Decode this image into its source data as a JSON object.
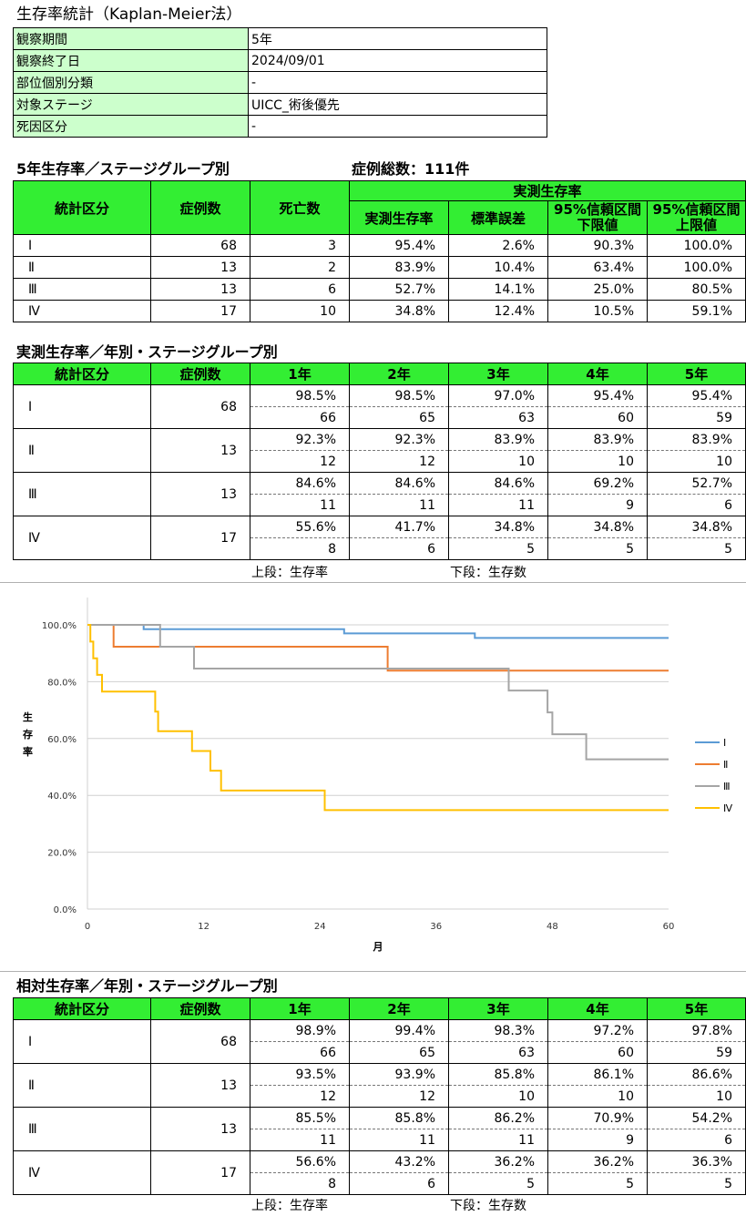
{
  "title": "生存率統計（Kaplan-Meier法）",
  "info": [
    {
      "label": "観察期間",
      "value": "5年"
    },
    {
      "label": "観察終了日",
      "value": "2024/09/01"
    },
    {
      "label": "部位個別分類",
      "value": "-"
    },
    {
      "label": "対象ステージ",
      "value": "UICC_術後優先"
    },
    {
      "label": "死因区分",
      "value": "-"
    }
  ],
  "five_year": {
    "heading": "5年生存率／ステージグループ別",
    "total": "症例総数：111件",
    "headers": {
      "cat": "統計区分",
      "cases": "症例数",
      "deaths": "死亡数",
      "group": "実測生存率",
      "rate": "実測生存率",
      "se": "標準誤差",
      "lower_1": "95%信頼区間",
      "lower_2": "下限値",
      "upper_1": "95%信頼区間",
      "upper_2": "上限値"
    },
    "rows": [
      {
        "cat": "Ⅰ",
        "cases": "68",
        "deaths": "3",
        "rate": "95.4%",
        "se": "2.6%",
        "lower": "90.3%",
        "upper": "100.0%"
      },
      {
        "cat": "Ⅱ",
        "cases": "13",
        "deaths": "2",
        "rate": "83.9%",
        "se": "10.4%",
        "lower": "63.4%",
        "upper": "100.0%"
      },
      {
        "cat": "Ⅲ",
        "cases": "13",
        "deaths": "6",
        "rate": "52.7%",
        "se": "14.1%",
        "lower": "25.0%",
        "upper": "80.5%"
      },
      {
        "cat": "Ⅳ",
        "cases": "17",
        "deaths": "10",
        "rate": "34.8%",
        "se": "12.4%",
        "lower": "10.5%",
        "upper": "59.1%"
      }
    ]
  },
  "observed": {
    "heading": "実測生存率／年別・ステージグループ別",
    "headers": [
      "統計区分",
      "症例数",
      "1年",
      "2年",
      "3年",
      "4年",
      "5年"
    ],
    "rows": [
      {
        "cat": "Ⅰ",
        "cases": "68",
        "rates": [
          "98.5%",
          "98.5%",
          "97.0%",
          "95.4%",
          "95.4%"
        ],
        "counts": [
          "66",
          "65",
          "63",
          "60",
          "59"
        ]
      },
      {
        "cat": "Ⅱ",
        "cases": "13",
        "rates": [
          "92.3%",
          "92.3%",
          "83.9%",
          "83.9%",
          "83.9%"
        ],
        "counts": [
          "12",
          "12",
          "10",
          "10",
          "10"
        ]
      },
      {
        "cat": "Ⅲ",
        "cases": "13",
        "rates": [
          "84.6%",
          "84.6%",
          "84.6%",
          "69.2%",
          "52.7%"
        ],
        "counts": [
          "11",
          "11",
          "11",
          "9",
          "6"
        ]
      },
      {
        "cat": "Ⅳ",
        "cases": "17",
        "rates": [
          "55.6%",
          "41.7%",
          "34.8%",
          "34.8%",
          "34.8%"
        ],
        "counts": [
          "8",
          "6",
          "5",
          "5",
          "5"
        ]
      }
    ],
    "note_top": "上段：生存率",
    "note_bottom": "下段：生存数"
  },
  "relative": {
    "heading": "相対生存率／年別・ステージグループ別",
    "headers": [
      "統計区分",
      "症例数",
      "1年",
      "2年",
      "3年",
      "4年",
      "5年"
    ],
    "rows": [
      {
        "cat": "Ⅰ",
        "cases": "68",
        "rates": [
          "98.9%",
          "99.4%",
          "98.3%",
          "97.2%",
          "97.8%"
        ],
        "counts": [
          "66",
          "65",
          "63",
          "60",
          "59"
        ]
      },
      {
        "cat": "Ⅱ",
        "cases": "13",
        "rates": [
          "93.5%",
          "93.9%",
          "85.8%",
          "86.1%",
          "86.6%"
        ],
        "counts": [
          "12",
          "12",
          "10",
          "10",
          "10"
        ]
      },
      {
        "cat": "Ⅲ",
        "cases": "13",
        "rates": [
          "85.5%",
          "85.8%",
          "86.2%",
          "70.9%",
          "54.2%"
        ],
        "counts": [
          "11",
          "11",
          "11",
          "9",
          "6"
        ]
      },
      {
        "cat": "Ⅳ",
        "cases": "17",
        "rates": [
          "56.6%",
          "43.2%",
          "36.2%",
          "36.2%",
          "36.3%"
        ],
        "counts": [
          "8",
          "6",
          "5",
          "5",
          "5"
        ]
      }
    ],
    "note_top": "上段：生存率",
    "note_bottom": "下段：生存数"
  },
  "chart_data": {
    "type": "line",
    "step": true,
    "ylabel": "生存率",
    "xlabel": "月",
    "xlim": [
      0,
      60
    ],
    "ylim": [
      0,
      100
    ],
    "xticks": [
      0,
      12,
      24,
      36,
      48,
      60
    ],
    "yticks": [
      0,
      20,
      40,
      60,
      80,
      100
    ],
    "ytick_labels": [
      "0.0%",
      "20.0%",
      "40.0%",
      "60.0%",
      "80.0%",
      "100.0%"
    ],
    "grid": true,
    "legend_position": "right",
    "series": [
      {
        "name": "Ⅰ",
        "color": "#5b9bd5",
        "points": [
          [
            0,
            100
          ],
          [
            5.8,
            100
          ],
          [
            5.8,
            98.5
          ],
          [
            26.5,
            98.5
          ],
          [
            26.5,
            97.0
          ],
          [
            40,
            97.0
          ],
          [
            40,
            95.4
          ],
          [
            60,
            95.4
          ]
        ]
      },
      {
        "name": "Ⅱ",
        "color": "#ed7d31",
        "points": [
          [
            0,
            100
          ],
          [
            2.7,
            100
          ],
          [
            2.7,
            92.3
          ],
          [
            31,
            92.3
          ],
          [
            31,
            83.9
          ],
          [
            60,
            83.9
          ]
        ]
      },
      {
        "name": "Ⅲ",
        "color": "#a5a5a5",
        "points": [
          [
            0,
            100
          ],
          [
            7.5,
            100
          ],
          [
            7.5,
            92.3
          ],
          [
            11,
            92.3
          ],
          [
            11,
            84.6
          ],
          [
            43.5,
            84.6
          ],
          [
            43.5,
            76.9
          ],
          [
            47.5,
            76.9
          ],
          [
            47.5,
            69.2
          ],
          [
            48,
            69.2
          ],
          [
            48,
            61.5
          ],
          [
            51.5,
            61.5
          ],
          [
            51.5,
            52.7
          ],
          [
            60,
            52.7
          ]
        ]
      },
      {
        "name": "Ⅳ",
        "color": "#ffc000",
        "points": [
          [
            0,
            100
          ],
          [
            0.3,
            100
          ],
          [
            0.3,
            94.1
          ],
          [
            0.6,
            94.1
          ],
          [
            0.6,
            88.2
          ],
          [
            1.0,
            88.2
          ],
          [
            1.0,
            82.4
          ],
          [
            1.5,
            82.4
          ],
          [
            1.5,
            76.5
          ],
          [
            7,
            76.5
          ],
          [
            7,
            69.5
          ],
          [
            7.3,
            69.5
          ],
          [
            7.3,
            62.6
          ],
          [
            10.8,
            62.6
          ],
          [
            10.8,
            55.6
          ],
          [
            12.7,
            55.6
          ],
          [
            12.7,
            48.7
          ],
          [
            13.8,
            48.7
          ],
          [
            13.8,
            41.7
          ],
          [
            24.5,
            41.7
          ],
          [
            24.5,
            34.8
          ],
          [
            60,
            34.8
          ]
        ]
      }
    ]
  }
}
